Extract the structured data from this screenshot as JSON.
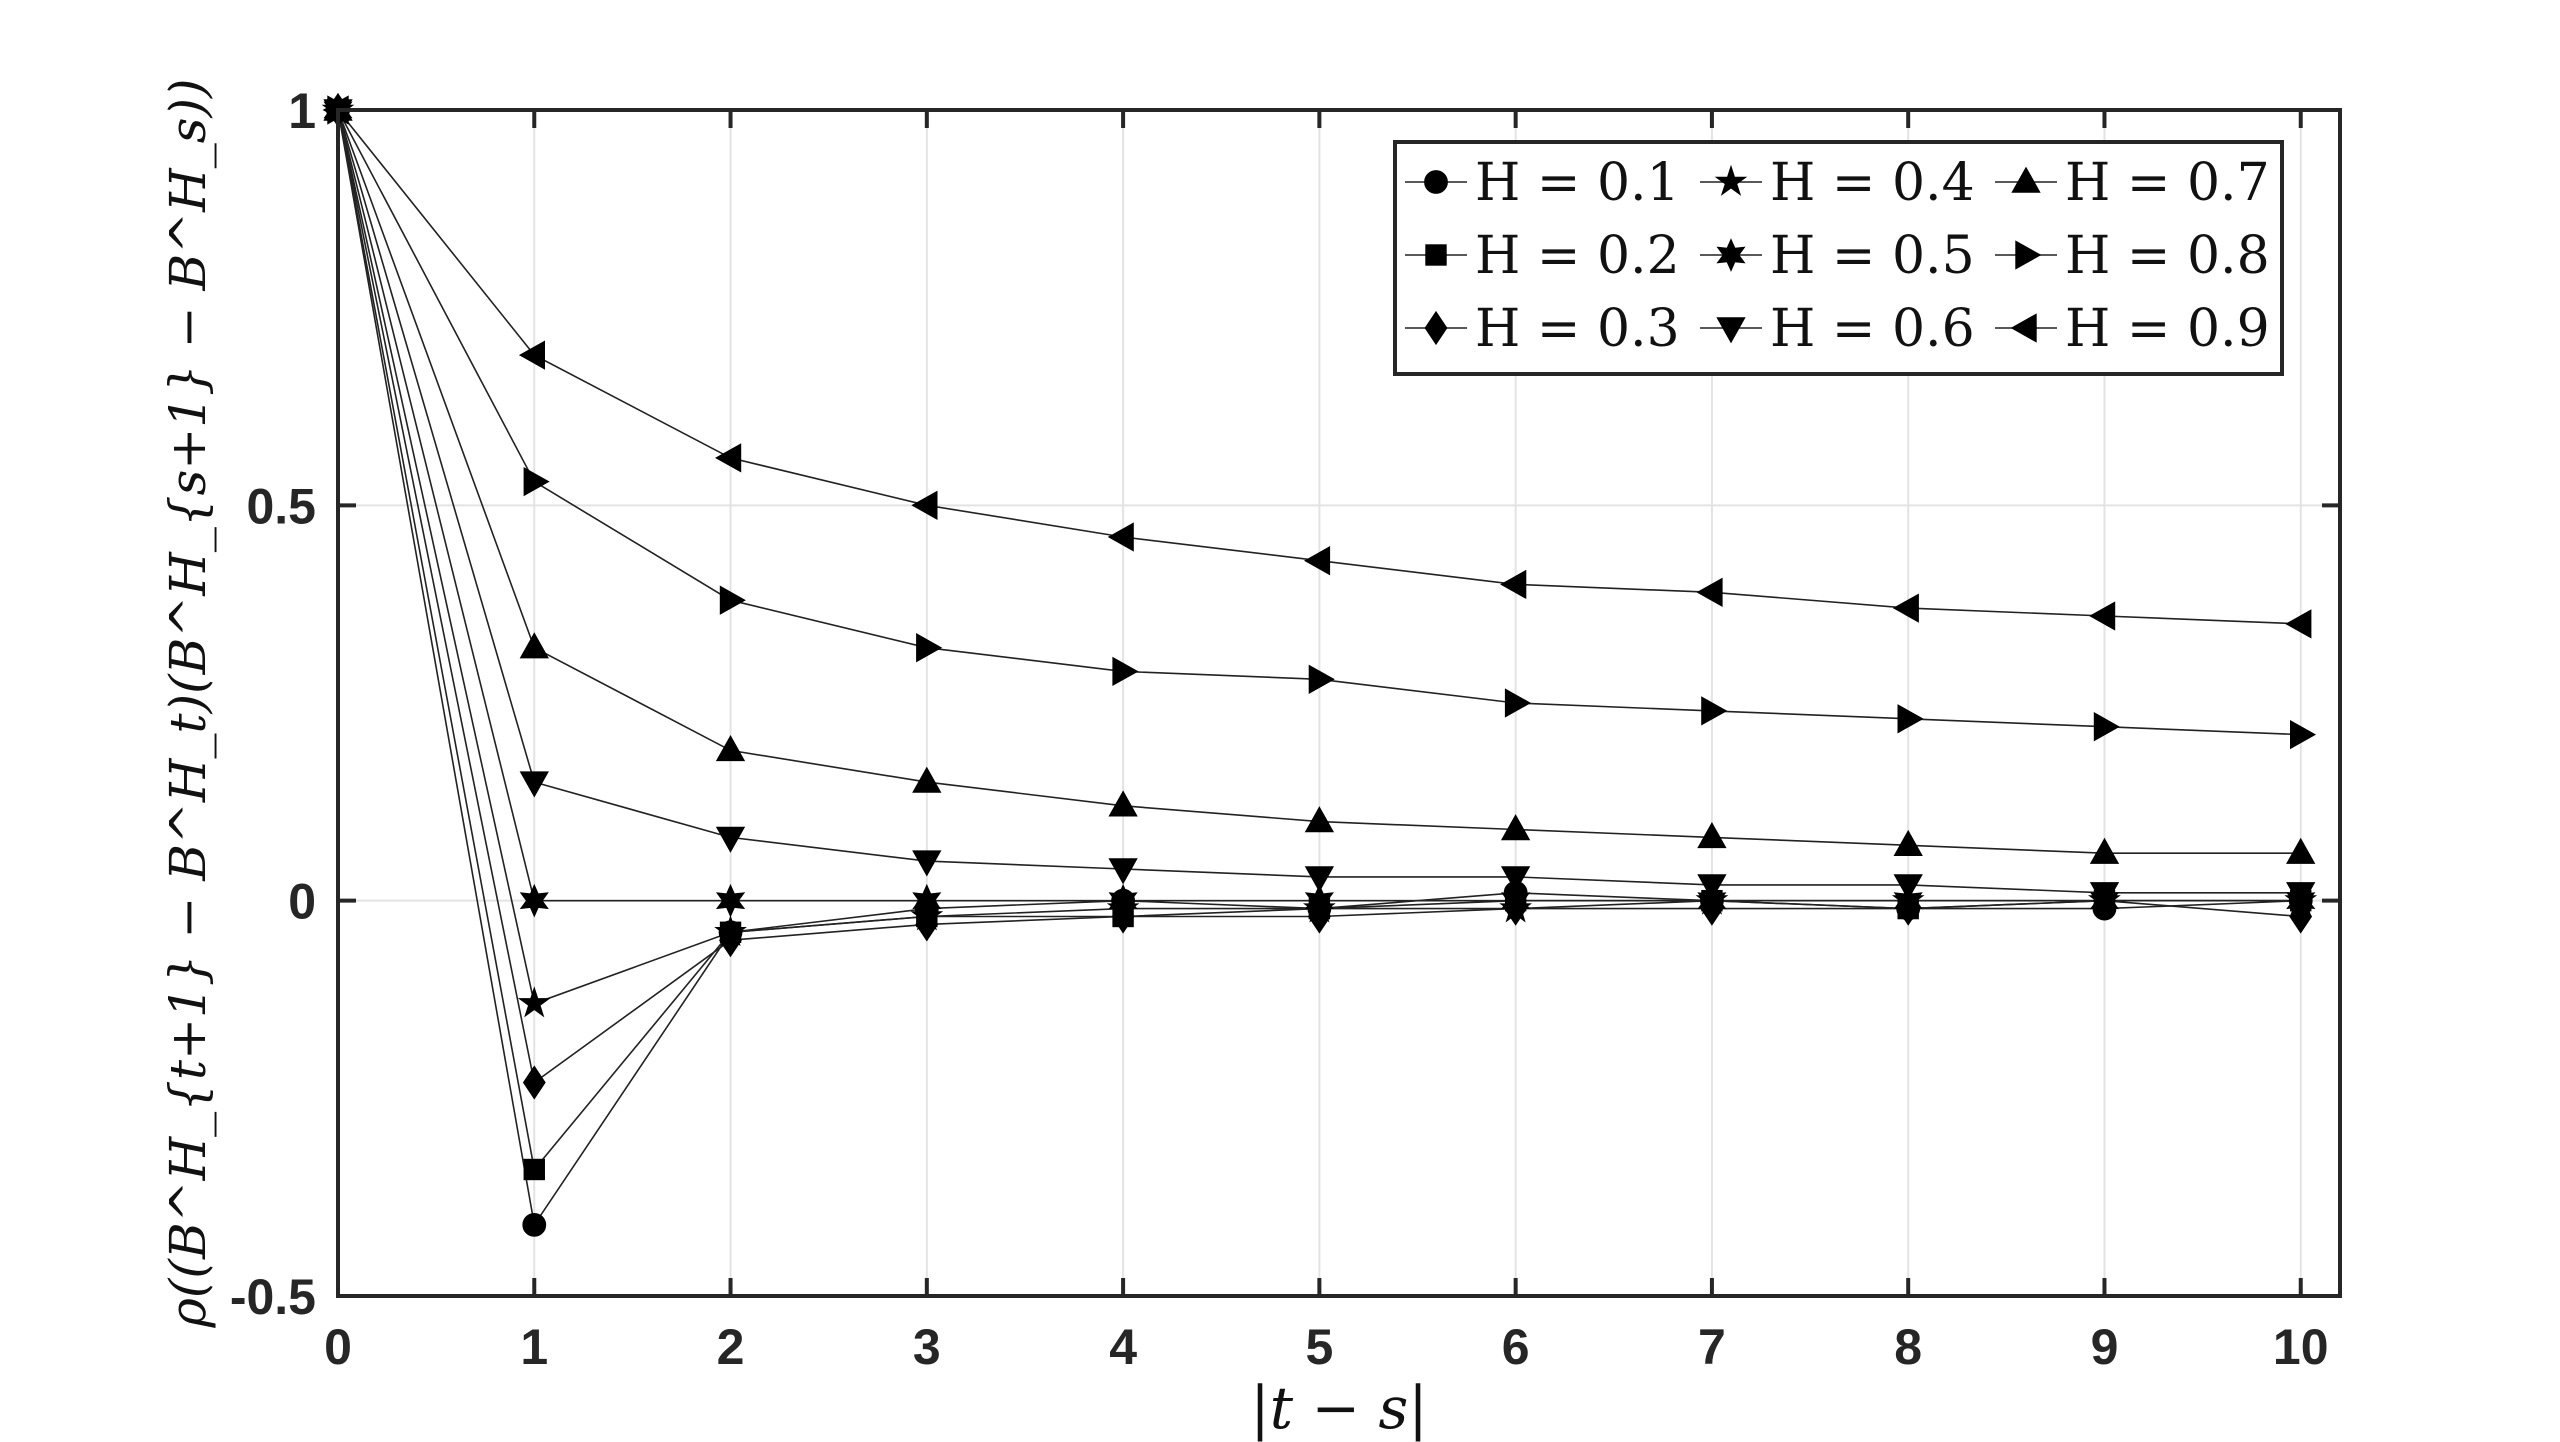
{
  "chart_data": {
    "type": "line",
    "xlabel": "|t − s|",
    "ylabel": "ρ((B^H_{t+1} − B^H_t)(B^H_{s+1} − B^H_s))",
    "xlim": [
      0,
      10.2
    ],
    "ylim": [
      -0.5,
      1
    ],
    "xticks": [
      "0",
      "1",
      "2",
      "3",
      "4",
      "5",
      "6",
      "7",
      "8",
      "9",
      "10"
    ],
    "yticks": [
      "-0.5",
      "0",
      "0.5",
      "1"
    ],
    "grid": true,
    "legend_position": "top-right",
    "x": [
      0,
      1,
      2,
      3,
      4,
      5,
      6,
      7,
      8,
      9,
      10
    ],
    "series": [
      {
        "name": "H = 0.1",
        "marker": "circle",
        "values": [
          1,
          -0.41,
          -0.04,
          -0.01,
          0.0,
          -0.01,
          0.01,
          0.0,
          -0.01,
          -0.01,
          0.0
        ]
      },
      {
        "name": "H = 0.2",
        "marker": "square",
        "values": [
          1,
          -0.34,
          -0.04,
          -0.02,
          -0.02,
          -0.01,
          0.0,
          0.0,
          -0.01,
          0.0,
          0.0
        ]
      },
      {
        "name": "H = 0.3",
        "marker": "diamond",
        "values": [
          1,
          -0.23,
          -0.05,
          -0.03,
          -0.02,
          -0.02,
          -0.01,
          -0.01,
          -0.01,
          0.0,
          -0.02
        ]
      },
      {
        "name": "H = 0.4",
        "marker": "star5",
        "values": [
          1,
          -0.13,
          -0.04,
          -0.02,
          -0.01,
          -0.01,
          -0.01,
          0.0,
          0.0,
          0.0,
          0.0
        ]
      },
      {
        "name": "H = 0.5",
        "marker": "star6",
        "values": [
          1,
          0.0,
          0.0,
          0.0,
          0.0,
          0.0,
          0.0,
          0.0,
          0.0,
          0.0,
          0.0
        ]
      },
      {
        "name": "H = 0.6",
        "marker": "tri-down",
        "values": [
          1,
          0.15,
          0.08,
          0.05,
          0.04,
          0.03,
          0.03,
          0.02,
          0.02,
          0.01,
          0.01
        ]
      },
      {
        "name": "H = 0.7",
        "marker": "tri-up",
        "values": [
          1,
          0.32,
          0.19,
          0.15,
          0.12,
          0.1,
          0.09,
          0.08,
          0.07,
          0.06,
          0.06
        ]
      },
      {
        "name": "H = 0.8",
        "marker": "tri-right",
        "values": [
          1,
          0.53,
          0.38,
          0.32,
          0.29,
          0.28,
          0.25,
          0.24,
          0.23,
          0.22,
          0.21
        ]
      },
      {
        "name": "H = 0.9",
        "marker": "tri-left",
        "values": [
          1,
          0.69,
          0.56,
          0.5,
          0.46,
          0.43,
          0.4,
          0.39,
          0.37,
          0.36,
          0.35
        ]
      }
    ]
  }
}
